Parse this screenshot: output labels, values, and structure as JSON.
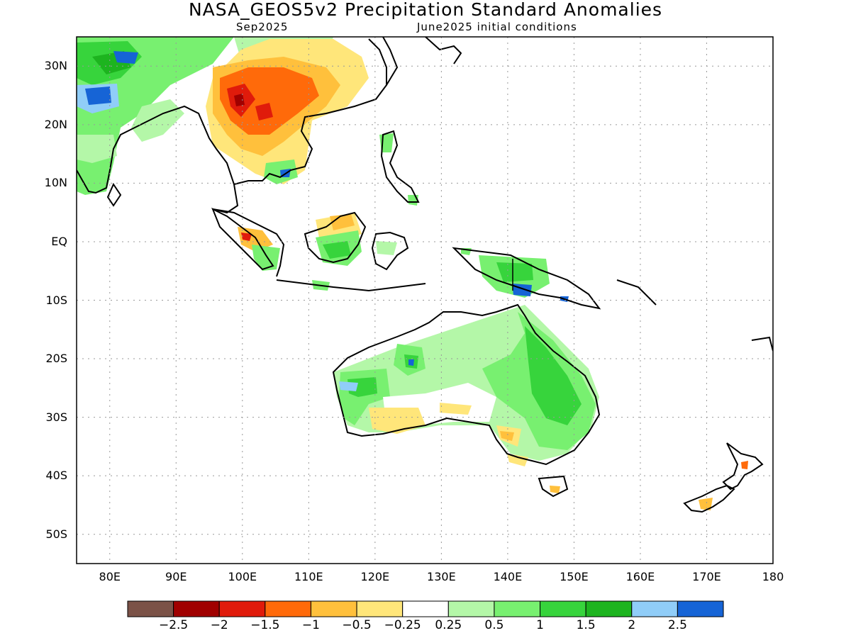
{
  "title": "NASA_GEOS5v2 Precipitation Standard Anomalies",
  "subtitle_left": "Sep2025",
  "subtitle_right": "June2025 initial conditions",
  "lat_labels": [
    "30N",
    "20N",
    "10N",
    "EQ",
    "10S",
    "20S",
    "30S",
    "40S",
    "50S"
  ],
  "lat_values": [
    30,
    20,
    10,
    0,
    -10,
    -20,
    -30,
    -40,
    -50
  ],
  "lon_labels": [
    "80E",
    "90E",
    "100E",
    "110E",
    "120E",
    "130E",
    "140E",
    "150E",
    "160E",
    "170E",
    "180"
  ],
  "lon_values": [
    80,
    90,
    100,
    110,
    120,
    130,
    140,
    150,
    160,
    170,
    180
  ],
  "map_extent": {
    "lon": [
      75,
      180
    ],
    "lat": [
      -55,
      35
    ]
  },
  "grid": "dotted",
  "colorbar": {
    "colors": [
      "#7b5247",
      "#a00000",
      "#e01b0b",
      "#ff6a0a",
      "#ffc03c",
      "#ffe67a",
      "#ffffff",
      "#b4f7a8",
      "#78f070",
      "#37d43c",
      "#1db41f",
      "#90cdf8",
      "#1664d6"
    ],
    "labels": [
      "−2.5",
      "−2",
      "−1.5",
      "−1",
      "−0.5",
      "−0.25",
      "0.25",
      "0.5",
      "1",
      "1.5",
      "2",
      "2.5"
    ]
  }
}
